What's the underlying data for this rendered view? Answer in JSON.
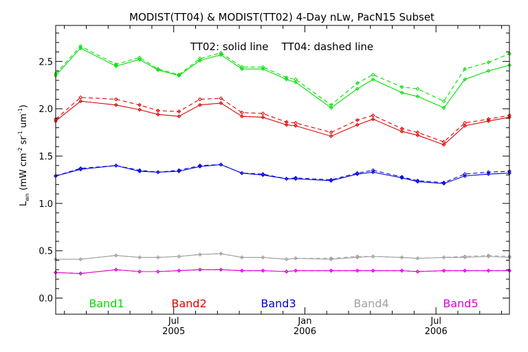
{
  "chart_data": {
    "type": "line",
    "title": "MODIST(TT04) & MODIST(TT02) 4-Day nLw, PacN15 Subset",
    "annotation": "TT02: solid line    TT04: dashed line",
    "ylabel_main": "L",
    "ylabel_sub": "wn",
    "ylabel_units": "(mW cm",
    "ylabel_sup1": "-2",
    "ylabel_mid": " sr",
    "ylabel_sup2": "-1",
    "ylabel_mid2": " um",
    "ylabel_sup3": "-1",
    "ylabel_close": ")",
    "ylim": [
      -0.17,
      2.88
    ],
    "xlim": [
      2005.05,
      2006.78
    ],
    "grid": false,
    "yticks": [
      {
        "value": 0.0,
        "label": "0.0"
      },
      {
        "value": 0.5,
        "label": "0.5"
      },
      {
        "value": 1.0,
        "label": "1.0"
      },
      {
        "value": 1.5,
        "label": "1.5"
      },
      {
        "value": 2.0,
        "label": "2.0"
      },
      {
        "value": 2.5,
        "label": "2.5"
      }
    ],
    "xticks": [
      {
        "value": 2005.5,
        "month": "Jul",
        "year": "2005"
      },
      {
        "value": 2006.0,
        "month": "Jan",
        "year": "2006"
      },
      {
        "value": 2006.5,
        "month": "Jul",
        "year": "2006"
      }
    ],
    "x": [
      2005.05,
      2005.145,
      2005.28,
      2005.37,
      2005.44,
      2005.52,
      2005.6,
      2005.68,
      2005.76,
      2005.84,
      2005.93,
      2005.965,
      2006.1,
      2006.2,
      2006.26,
      2006.37,
      2006.43,
      2006.53,
      2006.61,
      2006.7,
      2006.78
    ],
    "series": [
      {
        "name": "Band1",
        "band": "Band1",
        "sensor": "TT02",
        "style": "solid",
        "color": "#00dd00",
        "values": [
          2.35,
          2.64,
          2.45,
          2.52,
          2.41,
          2.35,
          2.51,
          2.57,
          2.42,
          2.42,
          2.31,
          2.28,
          2.01,
          2.21,
          2.31,
          2.17,
          2.13,
          2.01,
          2.31,
          2.4,
          2.46
        ]
      },
      {
        "name": "Band1",
        "band": "Band1",
        "sensor": "TT04",
        "style": "dashed",
        "color": "#00dd00",
        "values": [
          2.37,
          2.66,
          2.47,
          2.54,
          2.42,
          2.36,
          2.53,
          2.59,
          2.44,
          2.44,
          2.33,
          2.31,
          2.04,
          2.27,
          2.36,
          2.23,
          2.21,
          2.08,
          2.42,
          2.49,
          2.58
        ]
      },
      {
        "name": "Band2",
        "band": "Band2",
        "sensor": "TT02",
        "style": "solid",
        "color": "#dd0000",
        "values": [
          1.87,
          2.08,
          2.04,
          1.99,
          1.94,
          1.92,
          2.04,
          2.06,
          1.92,
          1.91,
          1.83,
          1.82,
          1.71,
          1.83,
          1.89,
          1.76,
          1.72,
          1.62,
          1.82,
          1.87,
          1.91
        ]
      },
      {
        "name": "Band2",
        "band": "Band2",
        "sensor": "TT04",
        "style": "dashed",
        "color": "#dd0000",
        "values": [
          1.89,
          2.12,
          2.1,
          2.04,
          1.98,
          1.97,
          2.1,
          2.11,
          1.96,
          1.95,
          1.86,
          1.85,
          1.75,
          1.88,
          1.93,
          1.79,
          1.75,
          1.65,
          1.85,
          1.89,
          1.93
        ]
      },
      {
        "name": "Band3",
        "band": "Band3",
        "sensor": "TT02",
        "style": "solid",
        "color": "#0000dd",
        "values": [
          1.29,
          1.36,
          1.4,
          1.34,
          1.33,
          1.34,
          1.39,
          1.41,
          1.32,
          1.3,
          1.26,
          1.26,
          1.24,
          1.31,
          1.33,
          1.27,
          1.23,
          1.21,
          1.29,
          1.31,
          1.32
        ]
      },
      {
        "name": "Band3",
        "band": "Band3",
        "sensor": "TT04",
        "style": "dashed",
        "color": "#0000dd",
        "values": [
          1.29,
          1.37,
          1.4,
          1.35,
          1.33,
          1.35,
          1.4,
          1.41,
          1.32,
          1.31,
          1.26,
          1.27,
          1.25,
          1.32,
          1.35,
          1.28,
          1.24,
          1.22,
          1.31,
          1.33,
          1.34
        ]
      },
      {
        "name": "Band4",
        "band": "Band4",
        "sensor": "TT02",
        "style": "solid",
        "color": "#a0a0a0",
        "values": [
          0.41,
          0.41,
          0.45,
          0.43,
          0.43,
          0.44,
          0.46,
          0.47,
          0.43,
          0.43,
          0.41,
          0.42,
          0.41,
          0.43,
          0.44,
          0.43,
          0.42,
          0.43,
          0.43,
          0.44,
          0.43
        ]
      },
      {
        "name": "Band4",
        "band": "Band4",
        "sensor": "TT04",
        "style": "dashed",
        "color": "#a0a0a0",
        "values": [
          0.41,
          0.41,
          0.45,
          0.43,
          0.43,
          0.44,
          0.46,
          0.47,
          0.43,
          0.43,
          0.41,
          0.42,
          0.42,
          0.44,
          0.44,
          0.43,
          0.42,
          0.43,
          0.44,
          0.45,
          0.44
        ]
      },
      {
        "name": "Band5",
        "band": "Band5",
        "sensor": "TT02",
        "style": "solid",
        "color": "#dd00dd",
        "values": [
          0.27,
          0.26,
          0.3,
          0.28,
          0.28,
          0.29,
          0.3,
          0.3,
          0.29,
          0.29,
          0.28,
          0.29,
          0.29,
          0.29,
          0.29,
          0.29,
          0.28,
          0.29,
          0.29,
          0.29,
          0.29
        ]
      },
      {
        "name": "Band5",
        "band": "Band5",
        "sensor": "TT04",
        "style": "dashed",
        "color": "#dd00dd",
        "values": [
          0.27,
          0.26,
          0.3,
          0.28,
          0.28,
          0.29,
          0.3,
          0.3,
          0.29,
          0.29,
          0.28,
          0.29,
          0.29,
          0.29,
          0.29,
          0.29,
          0.28,
          0.29,
          0.29,
          0.29,
          0.29
        ]
      }
    ],
    "legend": [
      {
        "label": "Band1",
        "color": "#00dd00"
      },
      {
        "label": "Band2",
        "color": "#dd0000"
      },
      {
        "label": "Band3",
        "color": "#0000dd"
      },
      {
        "label": "Band4",
        "color": "#a0a0a0"
      },
      {
        "label": "Band5",
        "color": "#dd00dd"
      }
    ]
  }
}
